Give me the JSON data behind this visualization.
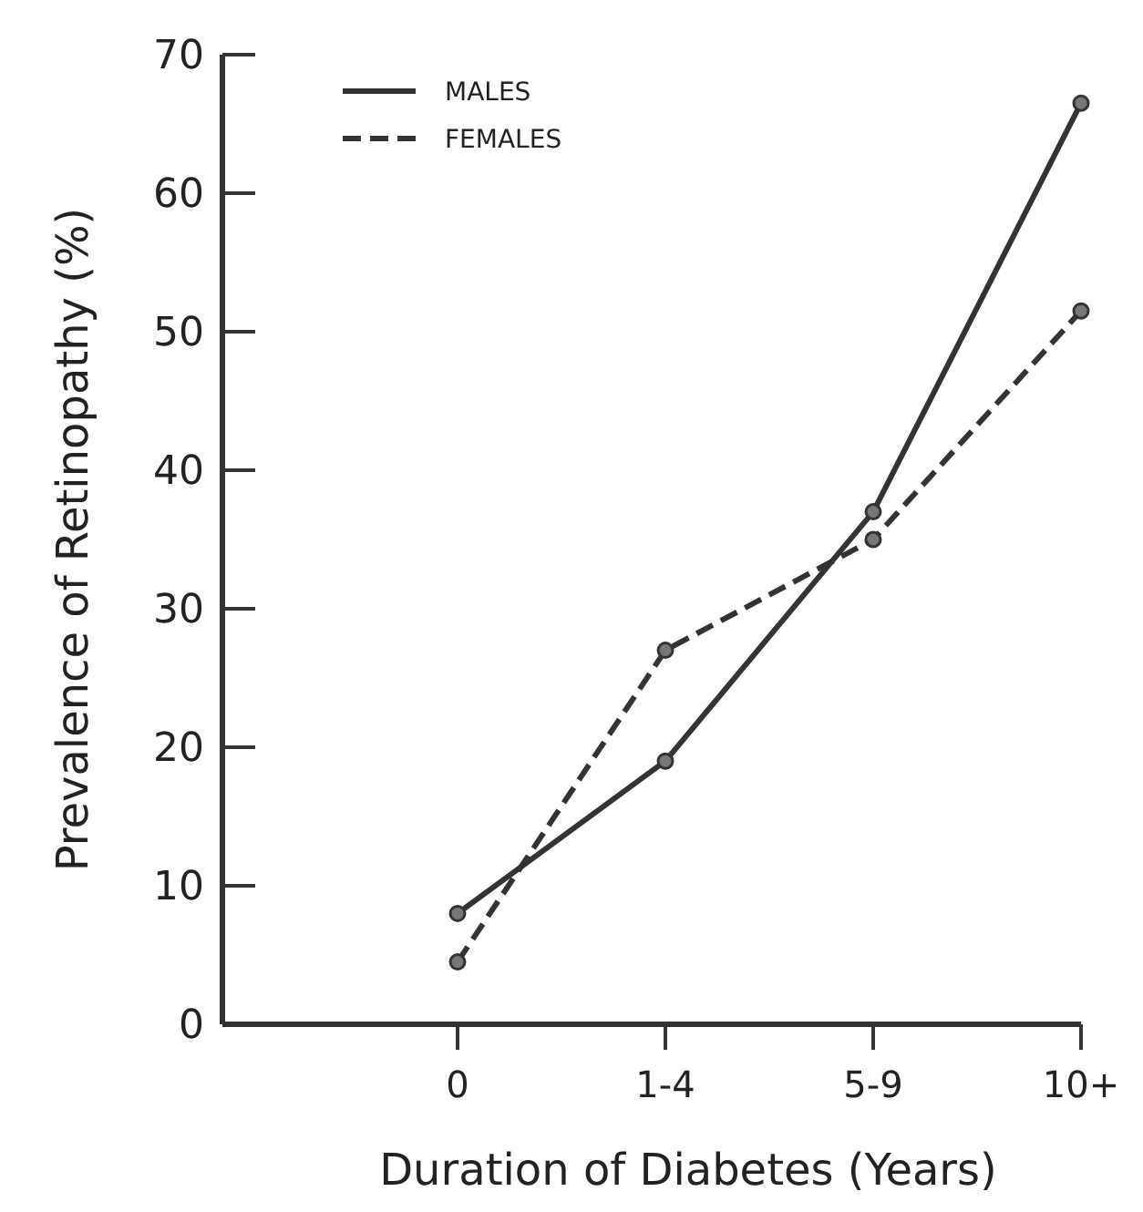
{
  "chart_data": {
    "type": "line",
    "xlabel": "Duration of Diabetes (Years)",
    "ylabel": "Prevalence of Retinopathy (%)",
    "categories": [
      "0",
      "1-4",
      "5-9",
      "10+"
    ],
    "series": [
      {
        "name": "MALES",
        "color": "#333333",
        "line_style": "solid",
        "values": [
          8,
          19,
          37,
          66.5
        ]
      },
      {
        "name": "FEMALES",
        "color": "#333333",
        "line_style": "dashed",
        "values": [
          4.5,
          27,
          35,
          51.5
        ]
      }
    ],
    "ylim": [
      0,
      70
    ],
    "yticks": [
      0,
      10,
      20,
      30,
      40,
      50,
      60,
      70
    ],
    "marker": "circle",
    "legend": "top left",
    "grid": false
  }
}
